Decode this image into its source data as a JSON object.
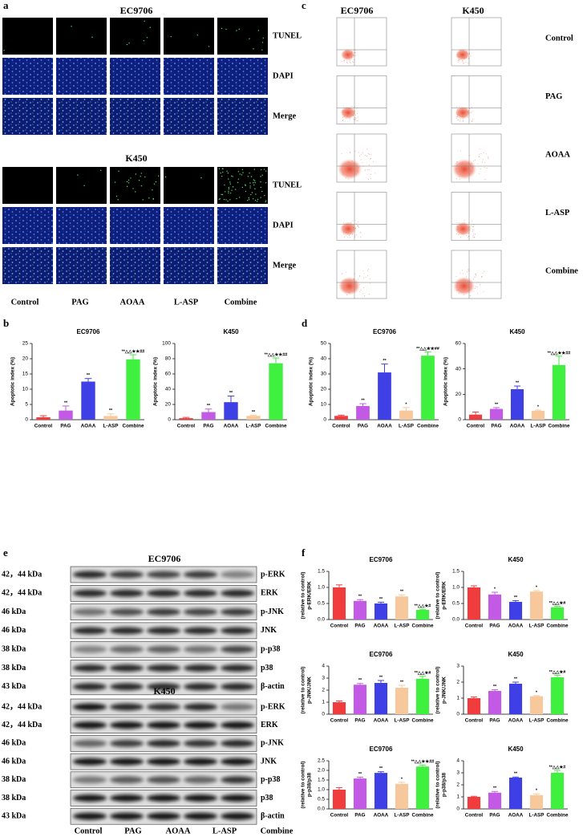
{
  "figure": {
    "panel_labels": [
      "a",
      "b",
      "c",
      "d",
      "e",
      "f"
    ],
    "tunel": {
      "cell_lines": [
        "EC9706",
        "K450"
      ],
      "stains": [
        "TUNEL",
        "DAPI",
        "Merge"
      ],
      "groups": [
        "Control",
        "PAG",
        "AOAA",
        "L-ASP",
        "Combine"
      ]
    },
    "flow": {
      "cell_lines": [
        "EC9706",
        "K450"
      ],
      "groups": [
        "Control",
        "PAG",
        "AOAA",
        "L-ASP",
        "Combine"
      ]
    },
    "blot": {
      "cell_lines": [
        "EC9706",
        "K450"
      ],
      "proteins": [
        "p-ERK",
        "ERK",
        "p-JNK",
        "JNK",
        "p-p38",
        "p38",
        "β-actin"
      ],
      "sizes": [
        "42，44 kDa",
        "42，44 kDa",
        "46 kDa",
        "46 kDa",
        "38 kDa",
        "38 kDa",
        "43 kDa"
      ],
      "groups": [
        "Control",
        "PAG",
        "AOAA",
        "L-ASP",
        "Combine"
      ]
    }
  },
  "chart_data": [
    {
      "type": "bar",
      "title": "EC9706",
      "ylabel": [
        "Apoptotic index (%)"
      ],
      "categories": [
        "Control",
        "PAG",
        "AOAA",
        "L-ASP",
        "Combine"
      ],
      "colors": [
        "#f03c3c",
        "#c25ae6",
        "#3f3fe6",
        "#f7c89c",
        "#3ff03f"
      ],
      "values": [
        0.8,
        3,
        12.5,
        1.2,
        19.8
      ],
      "errors": [
        0.5,
        1.5,
        1,
        0.7,
        1.5
      ],
      "annotations": [
        null,
        "**",
        "**",
        "**",
        "**△△★★##"
      ],
      "ylim": [
        0,
        25
      ],
      "yticks": [
        0,
        5,
        10,
        15,
        20,
        25
      ]
    },
    {
      "type": "bar",
      "title": "K450",
      "ylabel": [
        "Apoptotic index (%)"
      ],
      "categories": [
        "Control",
        "PAG",
        "AOAA",
        "L-ASP",
        "Combine"
      ],
      "colors": [
        "#f03c3c",
        "#c25ae6",
        "#3f3fe6",
        "#f7c89c",
        "#3ff03f"
      ],
      "values": [
        2,
        10,
        23,
        5,
        74
      ],
      "errors": [
        1,
        4,
        8,
        1,
        7
      ],
      "annotations": [
        null,
        "**",
        "**",
        "**",
        "**△△★★##"
      ],
      "ylim": [
        0,
        100
      ],
      "yticks": [
        0,
        20,
        40,
        60,
        80,
        100
      ]
    },
    {
      "type": "bar",
      "title": "EC9706",
      "ylabel": [
        "Apoptotic index (%)"
      ],
      "categories": [
        "Control",
        "PAG",
        "AOAA",
        "L-ASP",
        "Combine"
      ],
      "colors": [
        "#f03c3c",
        "#c25ae6",
        "#3f3fe6",
        "#f7c89c",
        "#3ff03f"
      ],
      "values": [
        2.5,
        9,
        31,
        6,
        42
      ],
      "errors": [
        0.5,
        1.5,
        5.5,
        2,
        2.5
      ],
      "annotations": [
        null,
        "**",
        "**",
        "*",
        "**△△★★##"
      ],
      "ylim": [
        0,
        50
      ],
      "yticks": [
        0,
        10,
        20,
        30,
        40,
        50
      ]
    },
    {
      "type": "bar",
      "title": "K450",
      "ylabel": [
        "Apoptotic index (%)"
      ],
      "categories": [
        "Control",
        "PAG",
        "AOAA",
        "L-ASP",
        "Combine"
      ],
      "colors": [
        "#f03c3c",
        "#c25ae6",
        "#3f3fe6",
        "#f7c89c",
        "#3ff03f"
      ],
      "values": [
        4,
        8.5,
        24,
        7,
        43
      ],
      "errors": [
        2,
        1,
        2.5,
        0.5,
        7
      ],
      "annotations": [
        null,
        "**",
        "**",
        "*",
        "**△△★★##"
      ],
      "ylim": [
        0,
        60
      ],
      "yticks": [
        0,
        20,
        40,
        60
      ]
    },
    {
      "type": "bar",
      "title": "EC9706",
      "ylabel": [
        "p-ERK/ERK",
        "(relative to control)"
      ],
      "categories": [
        "Control",
        "PAG",
        "AOAA",
        "L-ASP",
        "Combine"
      ],
      "colors": [
        "#f03c3c",
        "#c25ae6",
        "#3f3fe6",
        "#f7c89c",
        "#3ff03f"
      ],
      "values": [
        1.0,
        0.58,
        0.5,
        0.72,
        0.3
      ],
      "errors": [
        0.08,
        0.04,
        0.04,
        0.05,
        0.02
      ],
      "annotations": [
        null,
        "**",
        "**",
        "**",
        "**△△★#"
      ],
      "ylim": [
        0,
        1.5
      ],
      "yticks": [
        {
          "value": 0,
          "label": "0.0"
        },
        {
          "value": 0.5,
          "label": "0.5"
        },
        {
          "value": 1,
          "label": "1.0"
        },
        {
          "value": 1.5,
          "label": "1.5"
        }
      ]
    },
    {
      "type": "bar",
      "title": "K450",
      "ylabel": [
        "p-ERK/ERK",
        "(relative to control)"
      ],
      "categories": [
        "Control",
        "PAG",
        "AOAA",
        "L-ASP",
        "Combine"
      ],
      "colors": [
        "#f03c3c",
        "#c25ae6",
        "#3f3fe6",
        "#f7c89c",
        "#3ff03f"
      ],
      "values": [
        1.0,
        0.78,
        0.55,
        0.87,
        0.38
      ],
      "errors": [
        0.05,
        0.07,
        0.04,
        0.03,
        0.03
      ],
      "annotations": [
        null,
        "*",
        "**",
        "*",
        "**△△★#"
      ],
      "ylim": [
        0,
        1.5
      ],
      "yticks": [
        {
          "value": 0,
          "label": "0.0"
        },
        {
          "value": 0.5,
          "label": "0.5"
        },
        {
          "value": 1,
          "label": "1.0"
        },
        {
          "value": 1.5,
          "label": "1.5"
        }
      ]
    },
    {
      "type": "bar",
      "title": "EC9706",
      "ylabel": [
        "p-JNK/JNK",
        "(relative to control)"
      ],
      "categories": [
        "Control",
        "PAG",
        "AOAA",
        "L-ASP",
        "Combine"
      ],
      "colors": [
        "#f03c3c",
        "#c25ae6",
        "#3f3fe6",
        "#f7c89c",
        "#3ff03f"
      ],
      "values": [
        1,
        2.45,
        2.6,
        2.2,
        2.95
      ],
      "errors": [
        0.1,
        0.1,
        0.2,
        0.2,
        0.2
      ],
      "annotations": [
        null,
        "**",
        "**",
        "**",
        "**△△★#"
      ],
      "ylim": [
        0,
        4
      ],
      "yticks": [
        0,
        1,
        2,
        3,
        4
      ]
    },
    {
      "type": "bar",
      "title": "K450",
      "ylabel": [
        "p-JNK/JNK",
        "(relative to control)"
      ],
      "categories": [
        "Control",
        "PAG",
        "AOAA",
        "L-ASP",
        "Combine"
      ],
      "colors": [
        "#f03c3c",
        "#c25ae6",
        "#3f3fe6",
        "#f7c89c",
        "#3ff03f"
      ],
      "values": [
        1,
        1.45,
        1.9,
        1.12,
        2.3
      ],
      "errors": [
        0.08,
        0.08,
        0.1,
        0.04,
        0.12
      ],
      "annotations": [
        null,
        "**",
        "**",
        "*",
        "**△△★#"
      ],
      "ylim": [
        0,
        3
      ],
      "yticks": [
        0,
        1,
        2,
        3
      ]
    },
    {
      "type": "bar",
      "title": "EC9706",
      "ylabel": [
        "p-p38/p38",
        "(relative to control)"
      ],
      "categories": [
        "Control",
        "PAG",
        "AOAA",
        "L-ASP",
        "Combine"
      ],
      "colors": [
        "#f03c3c",
        "#c25ae6",
        "#3f3fe6",
        "#f7c89c",
        "#3ff03f"
      ],
      "values": [
        1,
        1.58,
        1.87,
        1.3,
        2.2
      ],
      "errors": [
        0.1,
        0.07,
        0.06,
        0.08,
        0.08
      ],
      "annotations": [
        null,
        "**",
        "**",
        "*",
        "**△△★★##"
      ],
      "ylim": [
        0,
        2.5
      ],
      "yticks": [
        {
          "value": 0,
          "label": "0.0"
        },
        {
          "value": 0.5,
          "label": "0.5"
        },
        {
          "value": 1,
          "label": "1.0"
        },
        {
          "value": 1.5,
          "label": "1.5"
        },
        {
          "value": 2,
          "label": "2.0"
        },
        {
          "value": 2.5,
          "label": "2.5"
        }
      ]
    },
    {
      "type": "bar",
      "title": "K450",
      "ylabel": [
        "p-p38/p38",
        "(relative to control)"
      ],
      "categories": [
        "Control",
        "PAG",
        "AOAA",
        "L-ASP",
        "Combine"
      ],
      "colors": [
        "#f03c3c",
        "#c25ae6",
        "#3f3fe6",
        "#f7c89c",
        "#3ff03f"
      ],
      "values": [
        1,
        1.35,
        2.6,
        1.15,
        3.0
      ],
      "errors": [
        0.05,
        0.1,
        0.05,
        0.1,
        0.2
      ],
      "annotations": [
        null,
        "**",
        "**",
        "*",
        "**△△★#"
      ],
      "ylim": [
        0,
        4
      ],
      "yticks": [
        0,
        1,
        2,
        3,
        4
      ]
    }
  ]
}
